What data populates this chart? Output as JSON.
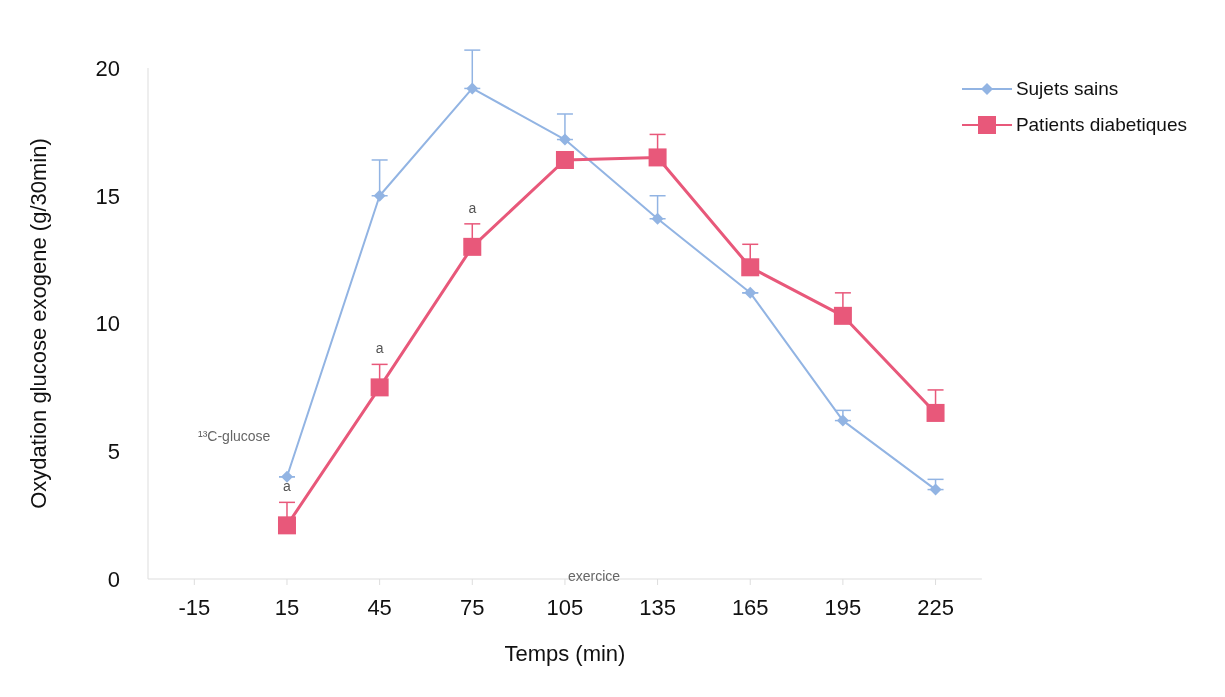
{
  "chart_data": {
    "type": "line",
    "xlabel": "Temps (min)",
    "ylabel": "Oxydation glucose exogene (g/30min)",
    "x": [
      15,
      45,
      75,
      105,
      135,
      165,
      195,
      225
    ],
    "series": [
      {
        "name": "Sujets sains",
        "color": "#92b4e3",
        "marker": "diamond",
        "values": [
          4.0,
          15.0,
          19.2,
          17.2,
          14.1,
          11.2,
          6.2,
          3.5
        ],
        "errors": [
          null,
          [
            15.0,
            16.4
          ],
          [
            19.2,
            20.7
          ],
          [
            17.2,
            18.2
          ],
          [
            14.1,
            15.0
          ],
          null,
          [
            6.2,
            6.6
          ],
          [
            3.5,
            3.9
          ]
        ]
      },
      {
        "name": "Patients diabetiques",
        "color": "#e8587a",
        "marker": "square",
        "values": [
          2.1,
          7.5,
          13.0,
          16.4,
          16.5,
          12.2,
          10.3,
          6.5
        ],
        "errors": [
          [
            2.1,
            3.0
          ],
          [
            7.5,
            8.4
          ],
          [
            13.0,
            13.9
          ],
          null,
          [
            16.5,
            17.4
          ],
          [
            12.2,
            13.1
          ],
          [
            10.3,
            11.2
          ],
          [
            6.5,
            7.4
          ]
        ]
      }
    ],
    "xlim": [
      -30,
      240
    ],
    "xticks": [
      -15,
      15,
      45,
      75,
      105,
      135,
      165,
      195,
      225
    ],
    "ylim": [
      0,
      20
    ],
    "yticks": [
      0,
      5,
      10,
      15,
      20
    ],
    "grid": false,
    "legend": "top right",
    "line_style": "solid",
    "annotations": [
      {
        "text": "a",
        "x": 15,
        "y": 2.1
      },
      {
        "text": "a",
        "x": 45,
        "y": 7.5
      },
      {
        "text": "a",
        "x": 75,
        "y": 13.0
      },
      "¹³C-glucose",
      "exercice"
    ]
  }
}
